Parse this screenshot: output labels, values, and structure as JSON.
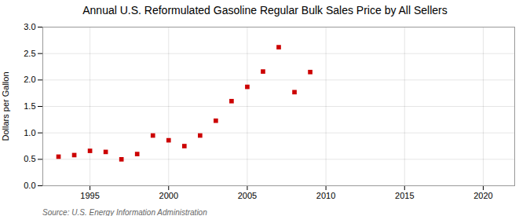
{
  "chart_data": {
    "type": "scatter",
    "title": "Annual U.S. Reformulated Gasoline Regular Bulk Sales Price by All Sellers",
    "ylabel": "Dollars per Gallon",
    "source": "Source: U.S. Energy Information Administration",
    "x": [
      1993,
      1994,
      1995,
      1996,
      1997,
      1998,
      1999,
      2000,
      2001,
      2002,
      2003,
      2004,
      2005,
      2006,
      2007,
      2008,
      2009,
      2010
    ],
    "values": [
      0.55,
      0.58,
      0.66,
      0.64,
      0.5,
      0.6,
      0.95,
      0.86,
      0.75,
      0.95,
      1.23,
      1.6,
      1.87,
      2.16,
      2.62,
      1.77,
      2.15,
      null
    ],
    "color": "#cc0000",
    "marker": "square",
    "xlim": [
      1992,
      2022
    ],
    "ylim": [
      0.0,
      3.0
    ],
    "xticks": [
      1995,
      2000,
      2005,
      2010,
      2015,
      2020
    ],
    "yticks": [
      {
        "value": 0.0,
        "label": "0.0"
      },
      0.5,
      {
        "value": 1.0,
        "label": "1.0"
      },
      1.5,
      {
        "value": 2.0,
        "label": "2.0"
      },
      2.5,
      {
        "value": 3.0,
        "label": "3.0"
      }
    ],
    "grid": true
  }
}
